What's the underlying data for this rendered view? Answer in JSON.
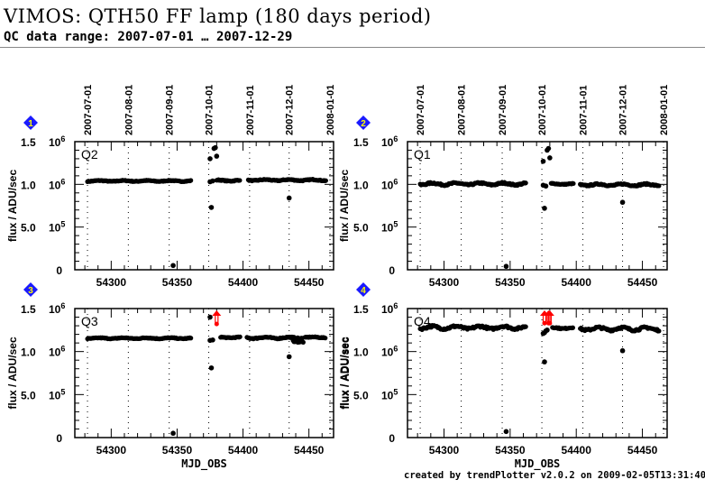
{
  "header": {
    "title": "VIMOS: QTH50 FF lamp (180 days period)",
    "subtitle": "QC data range: 2007-07-01 … 2007-12-29"
  },
  "footer": "created by trendPlotter v2.0.2 on 2009-02-05T13:31:40",
  "colors": {
    "points": "#000000",
    "outlier_arrow": "#ff0000",
    "badge": "#1a1aff",
    "badge_text": "#ffff00",
    "gridline": "#000000"
  },
  "chart_data": [
    {
      "type": "scatter",
      "panel": 1,
      "badge": "1",
      "label": "Q2",
      "title": "",
      "xlabel": "",
      "ylabel": "flux / ADU/sec",
      "xlim": [
        54272.4,
        54468.7
      ],
      "ylim": [
        0,
        1500000
      ],
      "xticks": [
        54300,
        54350,
        54400,
        54450
      ],
      "xtick_labels": [
        "54300",
        "54350",
        "54400",
        "54450"
      ],
      "yticks": [
        0,
        500000,
        1000000,
        1500000
      ],
      "ytick_labels": [
        [
          "0",
          ""
        ],
        [
          "5.0",
          "10^5"
        ],
        [
          "1.0",
          "10^6"
        ],
        [
          "1.5",
          "10^6"
        ]
      ],
      "date_ticks": [
        {
          "mjd": 54282,
          "label": "2007-07-01"
        },
        {
          "mjd": 54313,
          "label": "2007-08-01"
        },
        {
          "mjd": 54344,
          "label": "2007-09-01"
        },
        {
          "mjd": 54374,
          "label": "2007-10-01"
        },
        {
          "mjd": 54405,
          "label": "2007-11-01"
        },
        {
          "mjd": 54435,
          "label": "2007-12-01"
        },
        {
          "mjd": 54466,
          "label": "2008-01-01"
        }
      ],
      "segments": [
        {
          "from": 54282,
          "to": 54361,
          "base": 1040000,
          "amp": 8000
        },
        {
          "from": 54380,
          "to": 54398,
          "base": 1045000,
          "amp": 10000
        },
        {
          "from": 54404,
          "to": 54463,
          "base": 1050000,
          "amp": 10000
        }
      ],
      "points": [
        [
          54347,
          50000
        ],
        [
          54375,
          1300000
        ],
        [
          54376,
          730000
        ],
        [
          54375,
          1030000
        ],
        [
          54377,
          1040000
        ],
        [
          54378,
          1420000
        ],
        [
          54379,
          1430000
        ],
        [
          54380,
          1330000
        ],
        [
          54435,
          840000
        ]
      ],
      "outliers_high": []
    },
    {
      "type": "scatter",
      "panel": 2,
      "badge": "2",
      "label": "Q1",
      "title": "",
      "xlabel": "",
      "ylabel": "",
      "xlim": [
        54272.4,
        54468.7
      ],
      "ylim": [
        0,
        1500000
      ],
      "xticks": [
        54300,
        54350,
        54400,
        54450
      ],
      "xtick_labels": [
        "54300",
        "54350",
        "54400",
        "54450"
      ],
      "yticks": [
        0,
        500000,
        1000000,
        1500000
      ],
      "ytick_labels": [
        [
          "0",
          ""
        ],
        [
          "5.0",
          "10^5"
        ],
        [
          "1.0",
          "10^6"
        ],
        [
          "1.5",
          "10^6"
        ]
      ],
      "date_ticks": [
        {
          "mjd": 54282,
          "label": "2007-07-01"
        },
        {
          "mjd": 54313,
          "label": "2007-08-01"
        },
        {
          "mjd": 54344,
          "label": "2007-09-01"
        },
        {
          "mjd": 54374,
          "label": "2007-10-01"
        },
        {
          "mjd": 54405,
          "label": "2007-11-01"
        },
        {
          "mjd": 54435,
          "label": "2007-12-01"
        },
        {
          "mjd": 54466,
          "label": "2008-01-01"
        }
      ],
      "segments": [
        {
          "from": 54282,
          "to": 54362,
          "base": 1005000,
          "amp": 18000
        },
        {
          "from": 54381,
          "to": 54398,
          "base": 1005000,
          "amp": 8000
        },
        {
          "from": 54403,
          "to": 54463,
          "base": 995000,
          "amp": 15000
        }
      ],
      "points": [
        [
          54347,
          40000
        ],
        [
          54375,
          1270000
        ],
        [
          54376,
          720000
        ],
        [
          54375,
          990000
        ],
        [
          54377,
          980000
        ],
        [
          54378,
          1400000
        ],
        [
          54379,
          1420000
        ],
        [
          54380,
          1310000
        ],
        [
          54435,
          790000
        ]
      ],
      "outliers_high": []
    },
    {
      "type": "scatter",
      "panel": 3,
      "badge": "3",
      "label": "Q3",
      "title": "",
      "xlabel": "MJD_OBS",
      "ylabel": "flux / ADU/sec",
      "xlim": [
        54272.4,
        54468.7
      ],
      "ylim": [
        0,
        1500000
      ],
      "xticks": [
        54300,
        54350,
        54400,
        54450
      ],
      "xtick_labels": [
        "54300",
        "54350",
        "54400",
        "54450"
      ],
      "yticks": [
        0,
        500000,
        1000000,
        1500000
      ],
      "ytick_labels": [
        [
          "0",
          ""
        ],
        [
          "5.0",
          "10^5"
        ],
        [
          "1.0",
          "10^6"
        ],
        [
          "1.5",
          "10^6"
        ]
      ],
      "date_ticks": [
        {
          "mjd": 54282,
          "label": "2007-07-01"
        },
        {
          "mjd": 54313,
          "label": "2007-08-01"
        },
        {
          "mjd": 54344,
          "label": "2007-09-01"
        },
        {
          "mjd": 54374,
          "label": "2007-10-01"
        },
        {
          "mjd": 54405,
          "label": "2007-11-01"
        },
        {
          "mjd": 54435,
          "label": "2007-12-01"
        },
        {
          "mjd": 54466,
          "label": "2008-01-01"
        }
      ],
      "segments": [
        {
          "from": 54282,
          "to": 54361,
          "base": 1155000,
          "amp": 8000
        },
        {
          "from": 54383,
          "to": 54398,
          "base": 1165000,
          "amp": 8000
        },
        {
          "from": 54403,
          "to": 54445,
          "base": 1160000,
          "amp": 12000
        },
        {
          "from": 54438,
          "to": 54446,
          "base": 1120000,
          "amp": 15000
        },
        {
          "from": 54447,
          "to": 54463,
          "base": 1165000,
          "amp": 8000
        }
      ],
      "points": [
        [
          54347,
          50000
        ],
        [
          54375,
          1400000
        ],
        [
          54376,
          810000
        ],
        [
          54375,
          1130000
        ],
        [
          54377,
          1135000
        ],
        [
          54435,
          940000
        ]
      ],
      "outliers_high": [
        {
          "mjd": 54380,
          "y": 1320000
        }
      ]
    },
    {
      "type": "scatter",
      "panel": 4,
      "badge": "4",
      "label": "Q4",
      "title": "",
      "xlabel": "MJD_OBS",
      "ylabel": "flux / ADU/sec",
      "xlim": [
        54272.4,
        54468.7
      ],
      "ylim": [
        0,
        1500000
      ],
      "xticks": [
        54300,
        54350,
        54400,
        54450
      ],
      "xtick_labels": [
        "54300",
        "54350",
        "54400",
        "54450"
      ],
      "yticks": [
        0,
        500000,
        1000000,
        1500000
      ],
      "ytick_labels": [
        [
          "0",
          ""
        ],
        [
          "5.0",
          "10^5"
        ],
        [
          "1.0",
          "10^6"
        ],
        [
          "1.5",
          "10^6"
        ]
      ],
      "date_ticks": [
        {
          "mjd": 54282,
          "label": "2007-07-01"
        },
        {
          "mjd": 54313,
          "label": "2007-08-01"
        },
        {
          "mjd": 54344,
          "label": "2007-09-01"
        },
        {
          "mjd": 54374,
          "label": "2007-10-01"
        },
        {
          "mjd": 54405,
          "label": "2007-11-01"
        },
        {
          "mjd": 54435,
          "label": "2007-12-01"
        },
        {
          "mjd": 54466,
          "label": "2008-01-01"
        }
      ],
      "segments": [
        {
          "from": 54282,
          "to": 54362,
          "base": 1280000,
          "amp": 25000
        },
        {
          "from": 54382,
          "to": 54398,
          "base": 1275000,
          "amp": 12000
        },
        {
          "from": 54403,
          "to": 54463,
          "base": 1265000,
          "amp": 25000
        }
      ],
      "points": [
        [
          54347,
          70000
        ],
        [
          54376,
          880000
        ],
        [
          54375,
          1210000
        ],
        [
          54376,
          1220000
        ],
        [
          54377,
          1240000
        ],
        [
          54378,
          1250000
        ],
        [
          54435,
          1010000
        ]
      ],
      "outliers_high": [
        {
          "mjd": 54376,
          "y": 1330000
        },
        {
          "mjd": 54379,
          "y": 1330000
        },
        {
          "mjd": 54380,
          "y": 1330000
        }
      ]
    }
  ]
}
